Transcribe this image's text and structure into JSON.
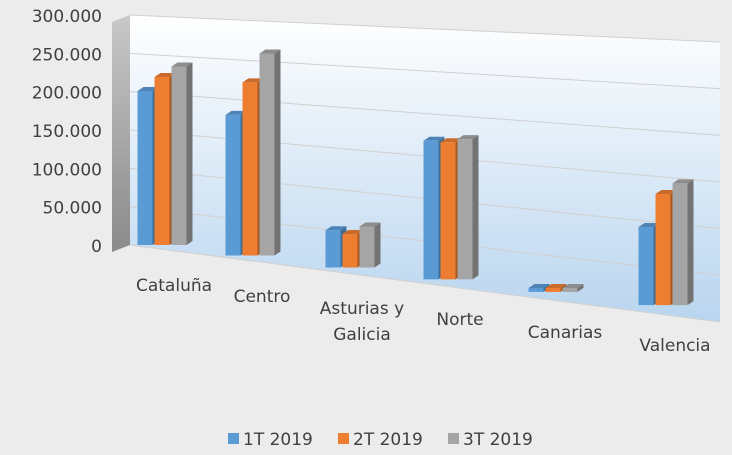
{
  "chart_data": {
    "type": "bar3d",
    "categories": [
      "Cataluña",
      "Centro",
      "Asturias y Galicia",
      "Norte",
      "Canarias",
      "Valencia"
    ],
    "series": [
      {
        "name": "1T 2019",
        "color": "#5b9bd5",
        "values": [
          220000,
          195000,
          50000,
          180000,
          5000,
          95000
        ]
      },
      {
        "name": "2T 2019",
        "color": "#ed7d31",
        "values": [
          240000,
          240000,
          45000,
          178000,
          5000,
          135000
        ]
      },
      {
        "name": "3T 2019",
        "color": "#a5a5a5",
        "values": [
          255000,
          280000,
          55000,
          182000,
          5000,
          148000
        ]
      }
    ],
    "ylim": [
      0,
      300000
    ],
    "yticks": [
      {
        "value": 0,
        "label": "0"
      },
      {
        "value": 50000,
        "label": "50.000"
      },
      {
        "value": 100000,
        "label": "100.000"
      },
      {
        "value": 150000,
        "label": "150.000"
      },
      {
        "value": 200000,
        "label": "200.000"
      },
      {
        "value": 250000,
        "label": "250.000"
      },
      {
        "value": 300000,
        "label": "300.000"
      }
    ],
    "grid": true,
    "legend": "bottom"
  }
}
